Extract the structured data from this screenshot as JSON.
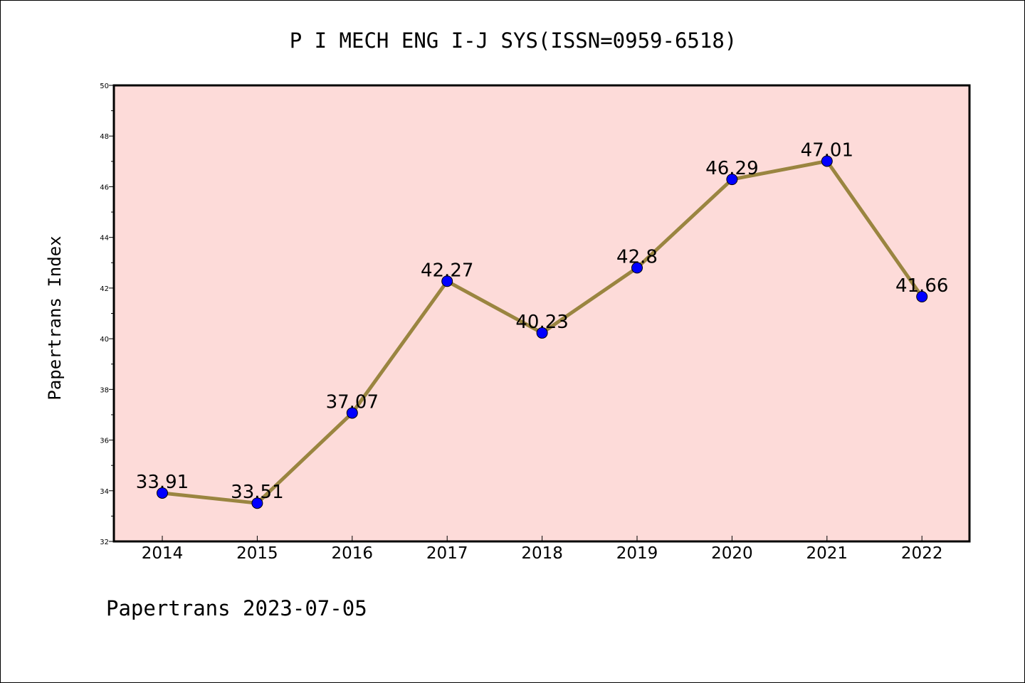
{
  "colors": {
    "plot_background": "#fddbd9",
    "line": "#9a8540",
    "marker": "#0000ff",
    "axis": "#000000"
  },
  "chart_data": {
    "type": "line",
    "title": "P I MECH ENG I-J SYS(ISSN=0959-6518)",
    "xlabel": "",
    "ylabel": "Papertrans Index",
    "categories": [
      "2014",
      "2015",
      "2016",
      "2017",
      "2018",
      "2019",
      "2020",
      "2021",
      "2022"
    ],
    "series": [
      {
        "values": [
          33.91,
          33.51,
          37.07,
          42.27,
          40.23,
          42.8,
          46.29,
          47.01,
          41.66
        ],
        "labels": [
          "33.91",
          "33.51",
          "37.07",
          "42.27",
          "40.23",
          "42.8",
          "46.29",
          "47.01",
          "41.66"
        ]
      }
    ],
    "ylim": [
      32,
      50
    ],
    "yticks": [
      32,
      34,
      36,
      38,
      40,
      42,
      44,
      46,
      48,
      50
    ],
    "grid": false,
    "legend": "none"
  },
  "footer": {
    "text": "Papertrans 2023-07-05"
  }
}
